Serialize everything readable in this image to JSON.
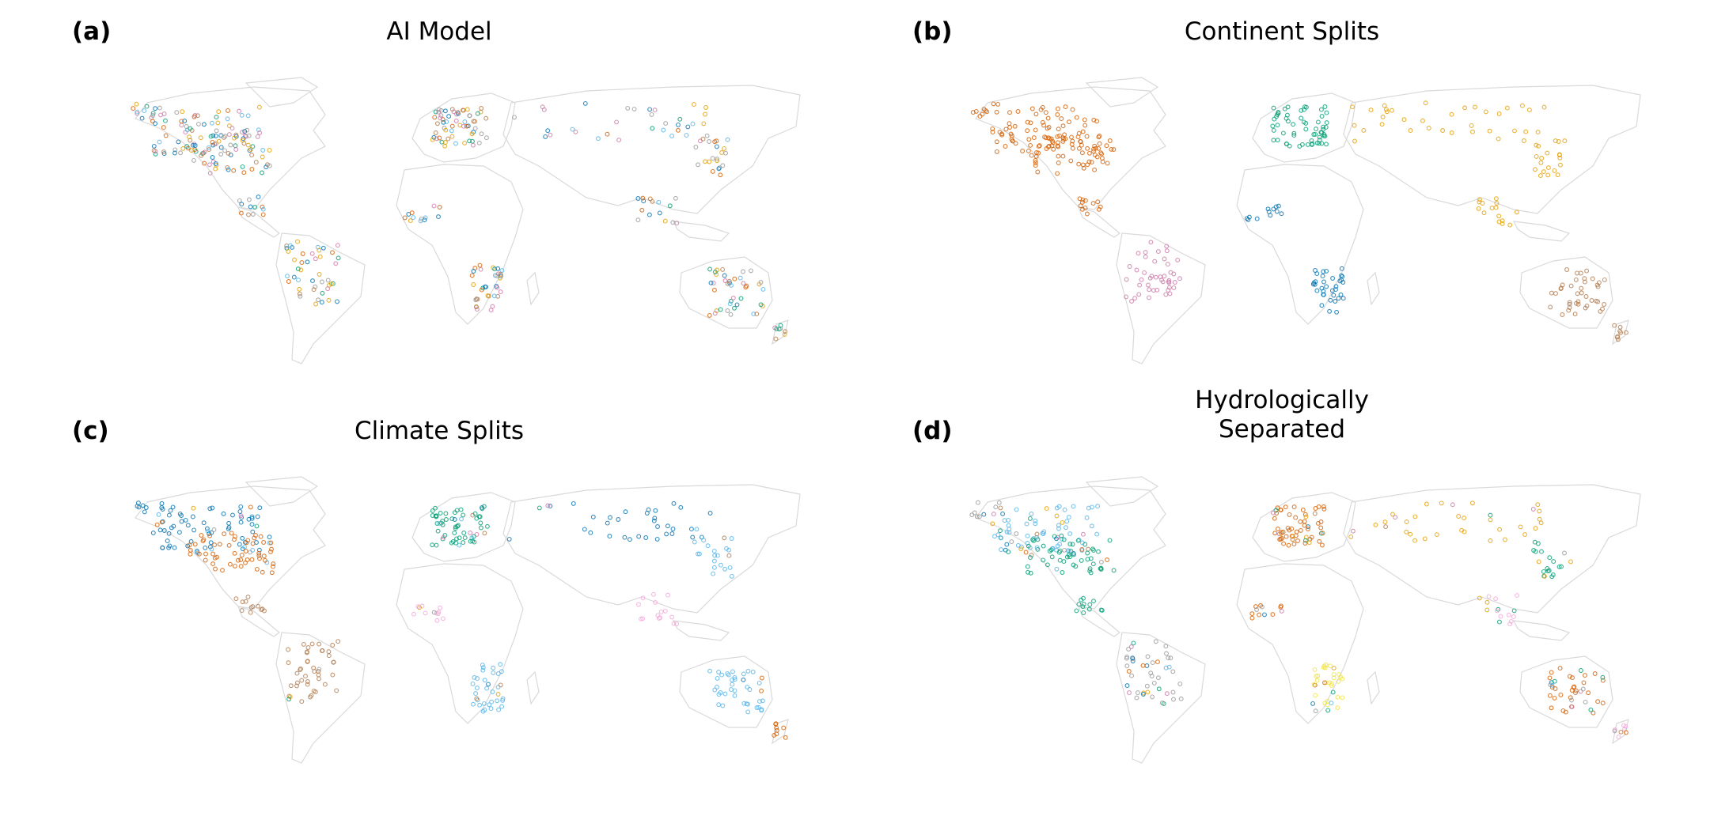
{
  "colors": {
    "land_outline": "#d9d9d9",
    "blue": "#0072b2",
    "orange": "#d55e00",
    "green": "#009e73",
    "pink": "#cc79a7",
    "brown": "#b07a4f",
    "yellow": "#e69f00",
    "skyblue": "#56b4e9",
    "lightpink": "#f2a6d8",
    "gray": "#999999",
    "bright_yellow": "#f0e442"
  },
  "panels": [
    {
      "id": "a",
      "label": "(a)",
      "title_lines": [
        "AI Model"
      ],
      "scheme": "mixed"
    },
    {
      "id": "b",
      "label": "(b)",
      "title_lines": [
        "Continent Splits"
      ],
      "scheme": "continent"
    },
    {
      "id": "c",
      "label": "(c)",
      "title_lines": [
        "Climate Splits"
      ],
      "scheme": "climate"
    },
    {
      "id": "d",
      "label": "(d)",
      "title_lines": [
        "Hydrologically",
        "Separated"
      ],
      "scheme": "hydro"
    }
  ]
}
